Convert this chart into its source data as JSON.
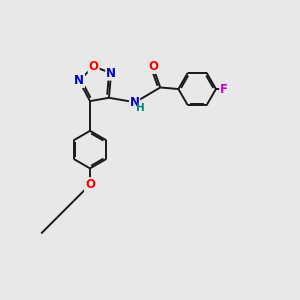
{
  "background_color": "#e8e8e8",
  "bond_color": "#1a1a1a",
  "atom_colors": {
    "O": "#ff0000",
    "N": "#0000cc",
    "F": "#cc00cc",
    "NH": "#0000cc",
    "H": "#008080",
    "C": "#1a1a1a"
  },
  "font_size": 8.5,
  "lw": 1.4
}
